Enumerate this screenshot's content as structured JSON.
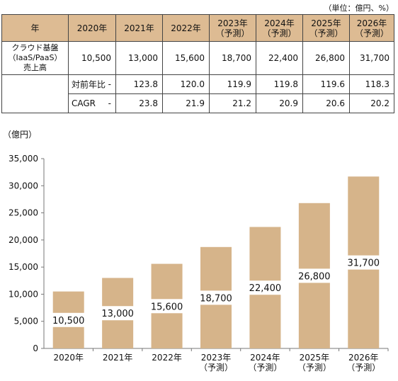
{
  "unit_note": "（単位：億円、%）",
  "table": {
    "header_first": "年",
    "columns": [
      {
        "year": "2020年",
        "note": ""
      },
      {
        "year": "2021年",
        "note": ""
      },
      {
        "year": "2022年",
        "note": ""
      },
      {
        "year": "2023年",
        "note": "（予測）"
      },
      {
        "year": "2024年",
        "note": "（予測）"
      },
      {
        "year": "2025年",
        "note": "（予測）"
      },
      {
        "year": "2026年",
        "note": "（予測）"
      }
    ],
    "main_label_lines": [
      "クラウド基盤",
      "（IaaS/PaaS）",
      "売上高"
    ],
    "main_values": [
      "10,500",
      "13,000",
      "15,600",
      "18,700",
      "22,400",
      "26,800",
      "31,700"
    ],
    "yoy_label": "対前年比",
    "yoy_values": [
      "-",
      "123.8",
      "120.0",
      "119.9",
      "119.8",
      "119.6",
      "118.3"
    ],
    "cagr_label": "CAGR",
    "cagr_values": [
      "-",
      "23.8",
      "21.9",
      "21.2",
      "20.9",
      "20.6",
      "20.2"
    ]
  },
  "chart_data": {
    "type": "bar",
    "y_unit_label": "（億円）",
    "categories": [
      {
        "year": "2020年",
        "note": ""
      },
      {
        "year": "2021年",
        "note": ""
      },
      {
        "year": "2022年",
        "note": ""
      },
      {
        "year": "2023年",
        "note": "（予測）"
      },
      {
        "year": "2024年",
        "note": "（予測）"
      },
      {
        "year": "2025年",
        "note": "（予測）"
      },
      {
        "year": "2026年",
        "note": "（予測）"
      }
    ],
    "values": [
      10500,
      13000,
      15600,
      18700,
      22400,
      26800,
      31700
    ],
    "data_labels": [
      "10,500",
      "13,000",
      "15,600",
      "18,700",
      "22,400",
      "26,800",
      "31,700"
    ],
    "ylim": [
      0,
      35000
    ],
    "yticks": [
      0,
      5000,
      10000,
      15000,
      20000,
      25000,
      30000,
      35000
    ],
    "ytick_labels": [
      "0",
      "5,000",
      "10,000",
      "15,000",
      "20,000",
      "25,000",
      "30,000",
      "35,000"
    ],
    "bar_color": "#d6b48a",
    "grid": false,
    "legend": "none"
  }
}
